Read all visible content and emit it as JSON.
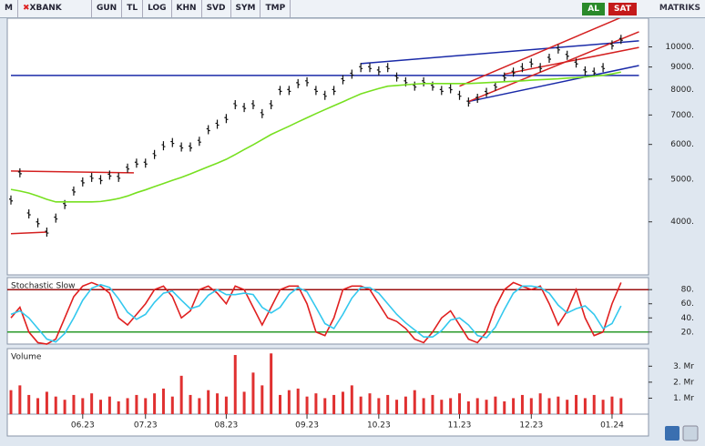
{
  "toolbar": {
    "logo": "M",
    "symbol": "XBANK",
    "items": [
      "GUN",
      "TL",
      "LOG",
      "KHN",
      "SVD",
      "SYM",
      "TMP"
    ],
    "buy": "AL",
    "sell": "SAT",
    "brand": "MATRIKS"
  },
  "chart_data": [
    {
      "type": "stock",
      "log": true,
      "ylim": [
        3030,
        11620
      ],
      "yticks": [
        {
          "value": 4000,
          "label": "4000."
        },
        {
          "value": 5000,
          "label": "5000."
        },
        {
          "value": 6000,
          "label": "6000."
        },
        {
          "value": 7000,
          "label": "7000."
        },
        {
          "value": 8000,
          "label": "8000."
        },
        {
          "value": 9000,
          "label": "9000."
        },
        {
          "value": 10000,
          "label": "10000."
        }
      ],
      "series": [
        {
          "mark": "bar",
          "color": "#111111",
          "values": [
            4485,
            5170,
            4170,
            3980,
            3790,
            4080,
            4380,
            4700,
            4930,
            5050,
            4990,
            5110,
            5050,
            5300,
            5440,
            5440,
            5690,
            5960,
            6060,
            5920,
            5920,
            6100,
            6480,
            6670,
            6870,
            7390,
            7280,
            7390,
            7050,
            7390,
            7960,
            7960,
            8250,
            8330,
            7960,
            7760,
            7960,
            8420,
            8670,
            8970,
            8970,
            8820,
            8970,
            8540,
            8330,
            8140,
            8330,
            8140,
            7960,
            8030,
            7760,
            7490,
            7640,
            7880,
            8140,
            8540,
            8760,
            8970,
            9190,
            8970,
            9420,
            9890,
            9570,
            9190,
            8820,
            8760,
            8970,
            10100,
            10400
          ]
        },
        {
          "mark": "line",
          "color": "#77e020",
          "values": [
            4740,
            4700,
            4650,
            4580,
            4500,
            4440,
            4440,
            4440,
            4440,
            4440,
            4450,
            4480,
            4520,
            4580,
            4660,
            4730,
            4810,
            4890,
            4970,
            5050,
            5140,
            5240,
            5340,
            5440,
            5550,
            5690,
            5840,
            5990,
            6150,
            6320,
            6460,
            6600,
            6750,
            6900,
            7050,
            7200,
            7350,
            7500,
            7660,
            7820,
            7930,
            8040,
            8140,
            8170,
            8200,
            8230,
            8250,
            8250,
            8250,
            8250,
            8250,
            8250,
            8270,
            8290,
            8310,
            8330,
            8350,
            8370,
            8400,
            8420,
            8440,
            8460,
            8490,
            8510,
            8540,
            8580,
            8620,
            8680,
            8760
          ]
        }
      ],
      "trend_lines": [
        {
          "color": "#d42020",
          "x": [
            0,
            13.7
          ],
          "values": [
            5220,
            5170
          ]
        },
        {
          "color": "#d42020",
          "x": [
            0,
            4
          ],
          "values": [
            3760,
            3790
          ]
        },
        {
          "color": "#1a2aa8",
          "x": [
            0,
            70
          ],
          "values": [
            8610,
            8610
          ]
        },
        {
          "color": "#1a2aa8",
          "x": [
            39,
            70
          ],
          "values": [
            9160,
            10320
          ]
        },
        {
          "color": "#1a2aa8",
          "x": [
            51,
            70
          ],
          "values": [
            7510,
            9070
          ]
        },
        {
          "color": "#d42020",
          "x": [
            50,
            69
          ],
          "values": [
            8140,
            11900
          ]
        },
        {
          "color": "#d42020",
          "x": [
            51,
            70
          ],
          "values": [
            7510,
            10820
          ]
        },
        {
          "color": "#d42020",
          "x": [
            55,
            70
          ],
          "values": [
            8670,
            9970
          ]
        }
      ]
    },
    {
      "type": "line",
      "title": "Stochastic Slow",
      "ylim": [
        3,
        97
      ],
      "yticks": [
        {
          "value": 20,
          "label": "20."
        },
        {
          "value": 40,
          "label": "40."
        },
        {
          "value": 60,
          "label": "60."
        },
        {
          "value": 80,
          "label": "80."
        }
      ],
      "reference_lines": [
        {
          "value": 80,
          "color": "#9a1010"
        },
        {
          "value": 20,
          "color": "#2a9a2a"
        }
      ],
      "series": [
        {
          "mark": "line",
          "color": "#e02020",
          "values": [
            40,
            55,
            20,
            5,
            3,
            10,
            40,
            70,
            85,
            90,
            85,
            75,
            40,
            30,
            45,
            60,
            80,
            85,
            70,
            40,
            50,
            80,
            85,
            75,
            60,
            85,
            80,
            55,
            30,
            55,
            80,
            85,
            85,
            60,
            20,
            15,
            40,
            80,
            85,
            85,
            80,
            60,
            40,
            35,
            25,
            10,
            5,
            20,
            40,
            50,
            30,
            10,
            5,
            20,
            55,
            80,
            90,
            85,
            80,
            85,
            60,
            30,
            50,
            80,
            40,
            15,
            20,
            60,
            90
          ]
        },
        {
          "mark": "line",
          "color": "#33c8ee",
          "values": [
            45,
            50,
            40,
            25,
            10,
            6,
            18,
            40,
            65,
            82,
            87,
            83,
            67,
            48,
            38,
            45,
            62,
            75,
            78,
            65,
            53,
            57,
            72,
            80,
            73,
            73,
            75,
            73,
            55,
            47,
            55,
            73,
            83,
            77,
            55,
            32,
            25,
            45,
            68,
            83,
            83,
            75,
            60,
            45,
            33,
            23,
            13,
            13,
            22,
            37,
            40,
            30,
            15,
            12,
            27,
            52,
            75,
            85,
            85,
            83,
            75,
            58,
            47,
            53,
            57,
            45,
            25,
            32,
            57
          ]
        }
      ]
    },
    {
      "type": "bar",
      "title": "Volume",
      "ylim": [
        0,
        4.1
      ],
      "yticks": [
        {
          "value": 1,
          "label": "1. Mr"
        },
        {
          "value": 2,
          "label": "2. Mr"
        },
        {
          "value": 3,
          "label": "3. Mr"
        }
      ],
      "categories": [
        null,
        null,
        null,
        null,
        null,
        null,
        null,
        null,
        "06.23",
        null,
        null,
        null,
        null,
        null,
        null,
        "07.23",
        null,
        null,
        null,
        null,
        null,
        null,
        null,
        null,
        "08.23",
        null,
        null,
        null,
        null,
        null,
        null,
        null,
        null,
        "09.23",
        null,
        null,
        null,
        null,
        null,
        null,
        null,
        "10.23",
        null,
        null,
        null,
        null,
        null,
        null,
        null,
        null,
        "11.23",
        null,
        null,
        null,
        null,
        null,
        null,
        null,
        "12.23",
        null,
        null,
        null,
        null,
        null,
        null,
        null,
        null,
        "01.24",
        null
      ],
      "series": [
        {
          "mark": "bar",
          "color": "#e03030",
          "values": [
            1.5,
            1.8,
            1.2,
            1.0,
            1.4,
            1.1,
            0.9,
            1.2,
            1.0,
            1.3,
            0.9,
            1.1,
            0.8,
            1.0,
            1.2,
            1.0,
            1.3,
            1.6,
            1.1,
            2.4,
            1.2,
            1.0,
            1.5,
            1.3,
            1.1,
            3.7,
            1.4,
            2.6,
            1.8,
            3.8,
            1.2,
            1.5,
            1.6,
            1.1,
            1.3,
            1.0,
            1.2,
            1.4,
            1.8,
            1.1,
            1.3,
            1.0,
            1.2,
            0.9,
            1.1,
            1.5,
            1.0,
            1.2,
            0.9,
            1.0,
            1.3,
            0.8,
            1.0,
            0.9,
            1.1,
            0.8,
            1.0,
            1.2,
            1.0,
            1.3,
            1.0,
            1.1,
            0.9,
            1.2,
            1.0,
            1.2,
            0.9,
            1.1,
            1.0
          ]
        }
      ]
    }
  ]
}
